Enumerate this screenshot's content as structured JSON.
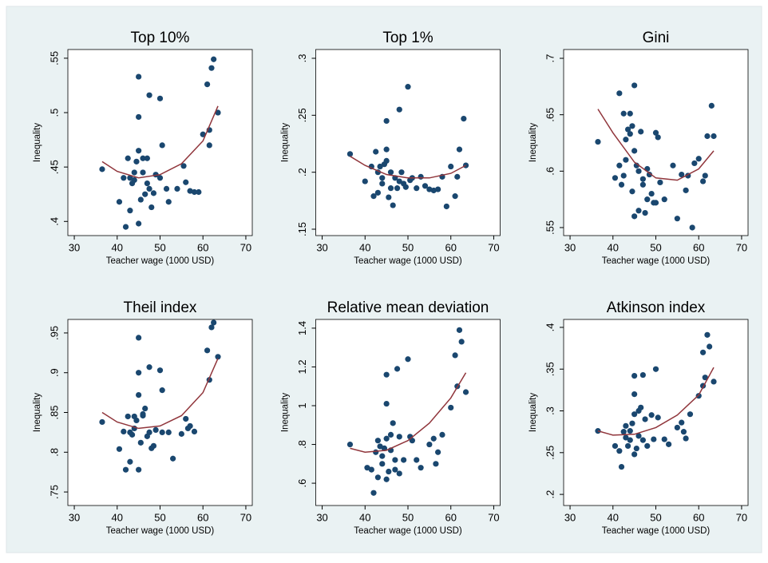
{
  "chart_data": [
    {
      "type": "scatter",
      "title": "Top 10%",
      "x_label": "Teacher wage (1000 USD)",
      "y_label": "Inequality",
      "xlim": [
        28.5,
        71.5
      ],
      "xticks": [
        30,
        40,
        50,
        60,
        70
      ],
      "ylim": [
        0.387,
        0.558
      ],
      "yticks": [
        {
          "value": 0.4,
          "label": ".4"
        },
        {
          "value": 0.45,
          "label": ".45"
        },
        {
          "value": 0.5,
          "label": ".5"
        },
        {
          "value": 0.55,
          "label": ".55"
        }
      ],
      "grid": false,
      "series": [
        {
          "type": "scatter",
          "color": "#1a476f",
          "x": [
            36.5,
            40.5,
            41.5,
            42,
            42.5,
            43,
            43,
            43.5,
            44,
            44,
            44.5,
            45,
            45,
            45,
            45,
            45.5,
            46,
            46,
            46.5,
            47,
            47,
            47.5,
            47.5,
            48,
            48.5,
            49,
            50,
            50,
            50.5,
            51.5,
            52,
            54,
            55.5,
            56,
            57,
            58,
            59,
            60,
            61,
            61.5,
            61.5,
            62,
            62.5,
            63.5
          ],
          "values": [
            0.448,
            0.418,
            0.44,
            0.395,
            0.458,
            0.41,
            0.44,
            0.435,
            0.445,
            0.438,
            0.455,
            0.465,
            0.533,
            0.496,
            0.398,
            0.42,
            0.445,
            0.458,
            0.425,
            0.458,
            0.435,
            0.516,
            0.43,
            0.413,
            0.426,
            0.443,
            0.513,
            0.44,
            0.47,
            0.43,
            0.418,
            0.43,
            0.451,
            0.436,
            0.428,
            0.427,
            0.427,
            0.48,
            0.526,
            0.484,
            0.47,
            0.541,
            0.549,
            0.5
          ]
        },
        {
          "type": "line",
          "color": "#90353b",
          "x": [
            36.5,
            40,
            45,
            50,
            55,
            60,
            63.5
          ],
          "values": [
            0.455,
            0.446,
            0.44,
            0.443,
            0.453,
            0.474,
            0.506
          ]
        }
      ]
    },
    {
      "type": "scatter",
      "title": "Top 1%",
      "x_label": "Teacher wage (1000 USD)",
      "y_label": "Inequality",
      "xlim": [
        28.5,
        71.5
      ],
      "xticks": [
        30,
        40,
        50,
        60,
        70
      ],
      "ylim": [
        0.1444,
        0.3077
      ],
      "yticks": [
        {
          "value": 0.15,
          "label": ".15"
        },
        {
          "value": 0.2,
          "label": ".2"
        },
        {
          "value": 0.25,
          "label": ".25"
        },
        {
          "value": 0.3,
          "label": ".3"
        }
      ],
      "grid": false,
      "series": [
        {
          "type": "scatter",
          "color": "#1a476f",
          "x": [
            36.5,
            40,
            41.5,
            42,
            42.5,
            43,
            43,
            43.5,
            44,
            44,
            44.5,
            45,
            45,
            45,
            45.5,
            46,
            46,
            46.5,
            47,
            47.5,
            48,
            48,
            48.5,
            49,
            49.5,
            50,
            50.5,
            51,
            52,
            53,
            54,
            55,
            56,
            57,
            58,
            59,
            60,
            61,
            61.5,
            62,
            63,
            63.5
          ],
          "values": [
            0.216,
            0.192,
            0.205,
            0.179,
            0.218,
            0.2,
            0.182,
            0.205,
            0.195,
            0.19,
            0.207,
            0.21,
            0.22,
            0.245,
            0.178,
            0.186,
            0.2,
            0.171,
            0.195,
            0.186,
            0.255,
            0.192,
            0.2,
            0.19,
            0.187,
            0.275,
            0.193,
            0.195,
            0.186,
            0.196,
            0.188,
            0.185,
            0.184,
            0.185,
            0.196,
            0.17,
            0.205,
            0.179,
            0.196,
            0.22,
            0.247,
            0.206
          ]
        },
        {
          "type": "line",
          "color": "#90353b",
          "x": [
            36.5,
            40,
            45,
            50,
            55,
            60,
            63.5
          ],
          "values": [
            0.214,
            0.206,
            0.198,
            0.195,
            0.195,
            0.199,
            0.206
          ]
        }
      ]
    },
    {
      "type": "scatter",
      "title": "Gini",
      "x_label": "Teacher wage (1000 USD)",
      "y_label": "Inequality",
      "xlim": [
        28.5,
        71.5
      ],
      "xticks": [
        30,
        40,
        50,
        60,
        70
      ],
      "ylim": [
        0.5429,
        0.7078
      ],
      "yticks": [
        {
          "value": 0.55,
          "label": ".55"
        },
        {
          "value": 0.6,
          "label": ".6"
        },
        {
          "value": 0.65,
          "label": ".65"
        },
        {
          "value": 0.7,
          "label": ".7"
        }
      ],
      "grid": false,
      "series": [
        {
          "type": "scatter",
          "color": "#1a476f",
          "x": [
            36.5,
            40.5,
            41.5,
            41.5,
            42,
            42.5,
            42.5,
            43,
            43,
            43.5,
            44,
            44,
            44.5,
            44.5,
            45,
            45,
            45,
            45.5,
            46,
            46,
            46.5,
            47,
            47,
            47.5,
            48,
            48,
            48.5,
            49,
            49.5,
            50,
            50,
            50.5,
            51,
            52,
            54,
            55,
            56,
            57,
            57.5,
            58.5,
            59,
            60,
            61,
            61.5,
            62,
            63,
            63.5
          ],
          "values": [
            0.626,
            0.594,
            0.669,
            0.605,
            0.588,
            0.651,
            0.596,
            0.628,
            0.61,
            0.637,
            0.633,
            0.651,
            0.64,
            0.582,
            0.676,
            0.618,
            0.56,
            0.605,
            0.6,
            0.565,
            0.635,
            0.588,
            0.593,
            0.563,
            0.602,
            0.575,
            0.597,
            0.58,
            0.572,
            0.634,
            0.572,
            0.63,
            0.59,
            0.575,
            0.605,
            0.558,
            0.597,
            0.583,
            0.596,
            0.55,
            0.607,
            0.611,
            0.591,
            0.596,
            0.631,
            0.658,
            0.631
          ]
        },
        {
          "type": "line",
          "color": "#90353b",
          "x": [
            36.5,
            40,
            45,
            50,
            55,
            60,
            63.5
          ],
          "values": [
            0.655,
            0.634,
            0.608,
            0.594,
            0.592,
            0.602,
            0.618
          ]
        }
      ]
    },
    {
      "type": "scatter",
      "title": "Theil index",
      "x_label": "Teacher wage (1000 USD)",
      "y_label": "Inequality",
      "xlim": [
        28.5,
        71.5
      ],
      "xticks": [
        30,
        40,
        50,
        60,
        70
      ],
      "ylim": [
        0.733,
        0.967
      ],
      "yticks": [
        {
          "value": 0.75,
          "label": ".75"
        },
        {
          "value": 0.8,
          "label": ".8"
        },
        {
          "value": 0.85,
          "label": ".85"
        },
        {
          "value": 0.9,
          "label": ".9"
        },
        {
          "value": 0.95,
          "label": ".95"
        }
      ],
      "grid": false,
      "series": [
        {
          "type": "scatter",
          "color": "#1a476f",
          "x": [
            36.5,
            40.5,
            41.5,
            42,
            42.5,
            43,
            43,
            43.5,
            44,
            44,
            44.5,
            45,
            45,
            45,
            45,
            45.5,
            46,
            46,
            46.5,
            47,
            47.5,
            47.5,
            48,
            48.5,
            49,
            50,
            50.5,
            50.5,
            52,
            53,
            55,
            56,
            56.5,
            57,
            58,
            61,
            61.5,
            62,
            62.5,
            63.5
          ],
          "values": [
            0.838,
            0.804,
            0.826,
            0.778,
            0.845,
            0.788,
            0.825,
            0.822,
            0.845,
            0.83,
            0.84,
            0.872,
            0.944,
            0.9,
            0.778,
            0.812,
            0.846,
            0.848,
            0.855,
            0.82,
            0.907,
            0.825,
            0.805,
            0.808,
            0.828,
            0.903,
            0.878,
            0.825,
            0.825,
            0.792,
            0.823,
            0.842,
            0.83,
            0.833,
            0.826,
            0.928,
            0.891,
            0.957,
            0.963,
            0.92
          ]
        },
        {
          "type": "line",
          "color": "#90353b",
          "x": [
            36.5,
            40,
            45,
            50,
            55,
            60,
            63.5
          ],
          "values": [
            0.85,
            0.838,
            0.83,
            0.833,
            0.846,
            0.875,
            0.918
          ]
        }
      ]
    },
    {
      "type": "scatter",
      "title": "Relative mean deviation",
      "x_label": "Teacher wage (1000 USD)",
      "y_label": "Inequality",
      "xlim": [
        28.5,
        71.5
      ],
      "xticks": [
        30,
        40,
        50,
        60,
        70
      ],
      "ylim": [
        0.485,
        1.445
      ],
      "yticks": [
        {
          "value": 0.6,
          "label": ".6"
        },
        {
          "value": 0.8,
          "label": ".8"
        },
        1,
        1.2,
        1.4
      ],
      "grid": false,
      "series": [
        {
          "type": "scatter",
          "color": "#1a476f",
          "x": [
            36.5,
            40.5,
            41.5,
            42,
            42.5,
            43,
            43,
            43.5,
            44,
            44,
            44.5,
            45,
            45,
            45,
            45,
            45.5,
            46,
            46,
            46.5,
            47,
            47,
            47.5,
            48,
            48,
            49,
            50,
            50.5,
            51,
            52,
            53,
            55,
            56,
            56.5,
            57,
            58,
            60,
            61,
            61.5,
            62,
            62.5,
            63.5
          ],
          "values": [
            0.8,
            0.68,
            0.67,
            0.55,
            0.76,
            0.63,
            0.82,
            0.79,
            0.74,
            0.7,
            0.78,
            0.83,
            1.16,
            1.01,
            0.62,
            0.66,
            0.85,
            0.77,
            0.91,
            0.72,
            0.67,
            1.19,
            0.84,
            0.65,
            0.72,
            1.24,
            0.84,
            0.82,
            0.72,
            0.68,
            0.8,
            0.83,
            0.7,
            0.76,
            0.85,
            0.99,
            1.26,
            1.1,
            1.39,
            1.33,
            1.07
          ]
        },
        {
          "type": "line",
          "color": "#90353b",
          "x": [
            36.5,
            40,
            45,
            50,
            55,
            60,
            63.5
          ],
          "values": [
            0.78,
            0.76,
            0.77,
            0.82,
            0.91,
            1.04,
            1.17
          ]
        }
      ]
    },
    {
      "type": "scatter",
      "title": "Atkinson index",
      "x_label": "Teacher wage (1000 USD)",
      "y_label": "Inequality",
      "xlim": [
        28.5,
        71.5
      ],
      "xticks": [
        30,
        40,
        50,
        60,
        70
      ],
      "ylim": [
        0.1867,
        0.4095
      ],
      "yticks": [
        {
          "value": 0.2,
          "label": ".2"
        },
        {
          "value": 0.25,
          "label": ".25"
        },
        {
          "value": 0.3,
          "label": ".3"
        },
        {
          "value": 0.35,
          "label": ".35"
        },
        {
          "value": 0.4,
          "label": ".4"
        }
      ],
      "grid": false,
      "series": [
        {
          "type": "scatter",
          "color": "#1a476f",
          "x": [
            36.5,
            40.5,
            41.5,
            42,
            42.5,
            43,
            43,
            43.5,
            44,
            44,
            44.5,
            45,
            45,
            45,
            45,
            45.5,
            46,
            46,
            46.5,
            47,
            47,
            47.5,
            48,
            49,
            49.5,
            50,
            50.5,
            52,
            53,
            55,
            56,
            56.5,
            57,
            58,
            60,
            61,
            61,
            61.5,
            62,
            62.5,
            63.5
          ],
          "values": [
            0.276,
            0.258,
            0.252,
            0.233,
            0.275,
            0.268,
            0.282,
            0.258,
            0.265,
            0.276,
            0.285,
            0.248,
            0.296,
            0.342,
            0.32,
            0.255,
            0.3,
            0.27,
            0.304,
            0.265,
            0.343,
            0.29,
            0.258,
            0.295,
            0.266,
            0.35,
            0.292,
            0.266,
            0.26,
            0.28,
            0.286,
            0.275,
            0.267,
            0.296,
            0.318,
            0.33,
            0.37,
            0.34,
            0.391,
            0.377,
            0.335
          ]
        },
        {
          "type": "line",
          "color": "#90353b",
          "x": [
            36.5,
            40,
            45,
            50,
            55,
            60,
            63.5
          ],
          "values": [
            0.276,
            0.271,
            0.272,
            0.28,
            0.295,
            0.319,
            0.352
          ]
        }
      ]
    }
  ]
}
